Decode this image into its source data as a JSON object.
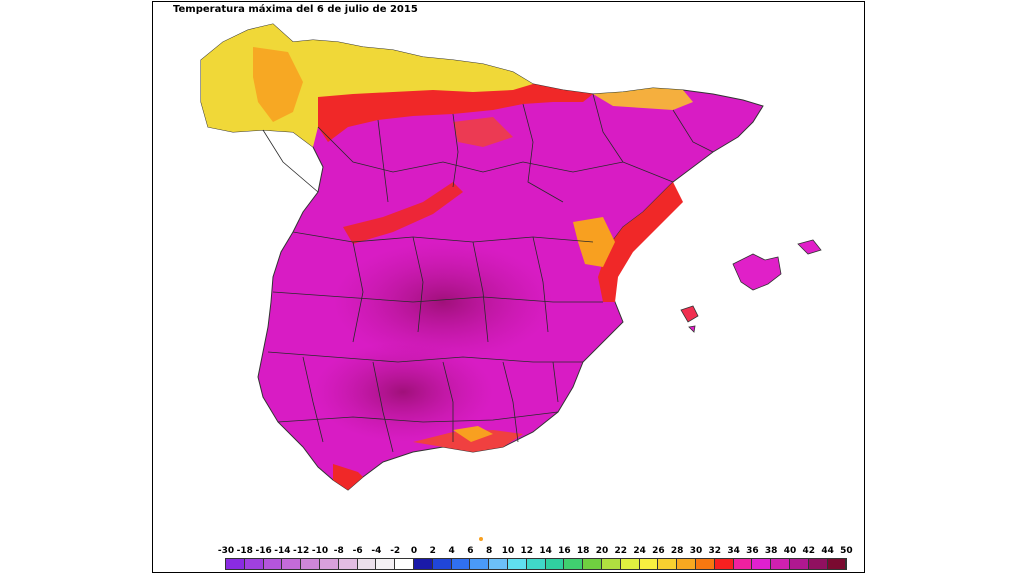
{
  "map": {
    "title": "Temperatura máxima del 6 de julio de 2015"
  },
  "legend": {
    "labels": [
      "-30",
      "-18",
      "-16",
      "-14",
      "-12",
      "-10",
      "-8",
      "-6",
      "-4",
      "-2",
      "0",
      "2",
      "4",
      "6",
      "8",
      "10",
      "12",
      "14",
      "16",
      "18",
      "20",
      "22",
      "24",
      "26",
      "28",
      "30",
      "32",
      "34",
      "36",
      "38",
      "40",
      "42",
      "44",
      "50"
    ],
    "colors": [
      "#8a2be2",
      "#a040e0",
      "#b455dd",
      "#c46bd9",
      "#cf86d9",
      "#d9a0dc",
      "#e3bde3",
      "#ece0ec",
      "#f4f0f4",
      "#ffffff",
      "#1a1aa8",
      "#2046d8",
      "#3070f0",
      "#4a9af8",
      "#6cc0f8",
      "#60e0f0",
      "#40d8c8",
      "#30d0a0",
      "#40d070",
      "#70d040",
      "#b0e040",
      "#e0f040",
      "#f8f040",
      "#f8d030",
      "#f8a820",
      "#f87810",
      "#f82020",
      "#f020a0",
      "#e020d0",
      "#d020b0",
      "#b01890",
      "#901060",
      "#7a0a30"
    ]
  },
  "palette": {
    "hot_magenta": "#e020d0",
    "deep_magenta": "#b0188a",
    "red": "#f03030",
    "orange": "#f8a020",
    "yellow": "#f0e040",
    "border": "#333333"
  }
}
